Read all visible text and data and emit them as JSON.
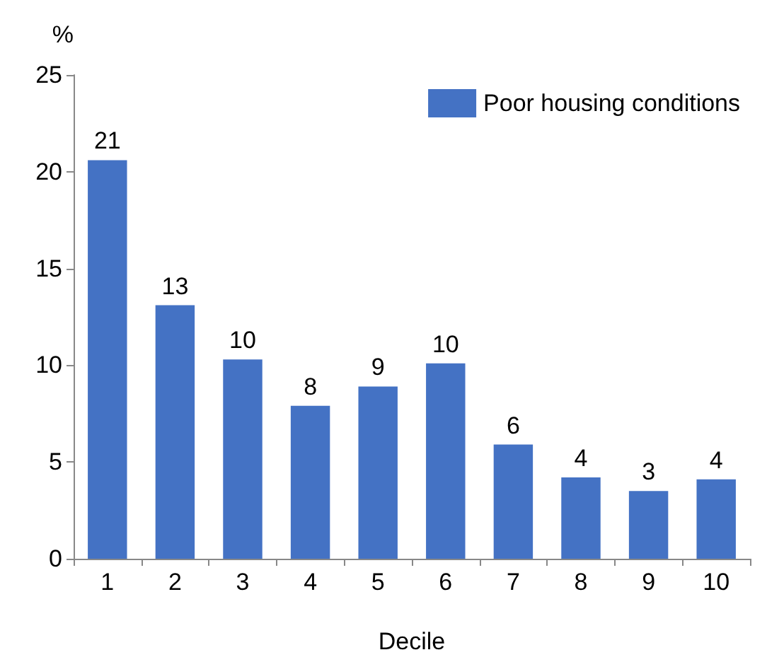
{
  "chart_data": {
    "type": "bar",
    "ylabel": "%",
    "xlabel": "Decile",
    "categories": [
      "1",
      "2",
      "3",
      "4",
      "5",
      "6",
      "7",
      "8",
      "9",
      "10"
    ],
    "series": [
      {
        "name": "Poor housing conditions",
        "color": "#4472c4",
        "values": [
          20.6,
          13.1,
          10.3,
          7.9,
          8.9,
          10.1,
          5.9,
          4.2,
          3.5,
          4.1
        ],
        "value_labels": [
          "21",
          "13",
          "10",
          "8",
          "9",
          "10",
          "6",
          "4",
          "3",
          "4"
        ]
      }
    ],
    "ylim": [
      0,
      25
    ],
    "yticks": [
      0,
      5,
      10,
      15,
      20,
      25
    ],
    "grid": false,
    "legend": "top right"
  }
}
